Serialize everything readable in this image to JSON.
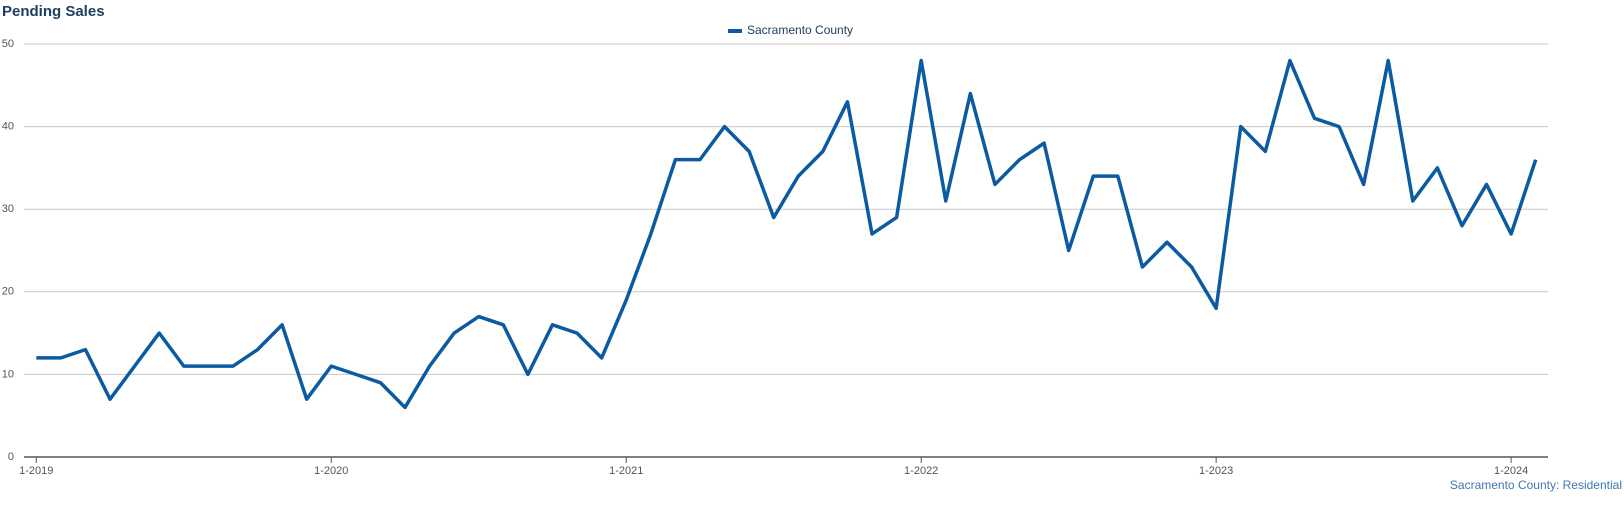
{
  "chart_data": {
    "type": "line",
    "title": "Pending Sales",
    "footer": "Sacramento County: Residential",
    "categories": [
      "1-2019",
      null,
      null,
      null,
      null,
      null,
      null,
      null,
      null,
      null,
      null,
      null,
      "1-2020",
      null,
      null,
      null,
      null,
      null,
      null,
      null,
      null,
      null,
      null,
      null,
      "1-2021",
      null,
      null,
      null,
      null,
      null,
      null,
      null,
      null,
      null,
      null,
      null,
      "1-2022",
      null,
      null,
      null,
      null,
      null,
      null,
      null,
      null,
      null,
      null,
      null,
      "1-2023",
      null,
      null,
      null,
      null,
      null,
      null,
      null,
      null,
      null,
      null,
      null,
      "1-2024",
      null
    ],
    "series": [
      {
        "name": "Sacramento County",
        "color": "#0b5aa2",
        "values": [
          12,
          12,
          13,
          7,
          11,
          15,
          11,
          11,
          11,
          13,
          16,
          7,
          11,
          10,
          9,
          6,
          11,
          15,
          17,
          16,
          10,
          16,
          15,
          12,
          19,
          27,
          36,
          36,
          40,
          37,
          29,
          34,
          37,
          43,
          27,
          29,
          48,
          31,
          44,
          33,
          36,
          38,
          25,
          34,
          34,
          23,
          26,
          23,
          18,
          40,
          37,
          48,
          41,
          40,
          33,
          48,
          31,
          35,
          28,
          33,
          27,
          36
        ]
      }
    ],
    "ylim": [
      0,
      50
    ],
    "yticks": [
      0,
      10,
      20,
      30,
      40,
      50
    ],
    "grid": true,
    "legend": "top"
  }
}
